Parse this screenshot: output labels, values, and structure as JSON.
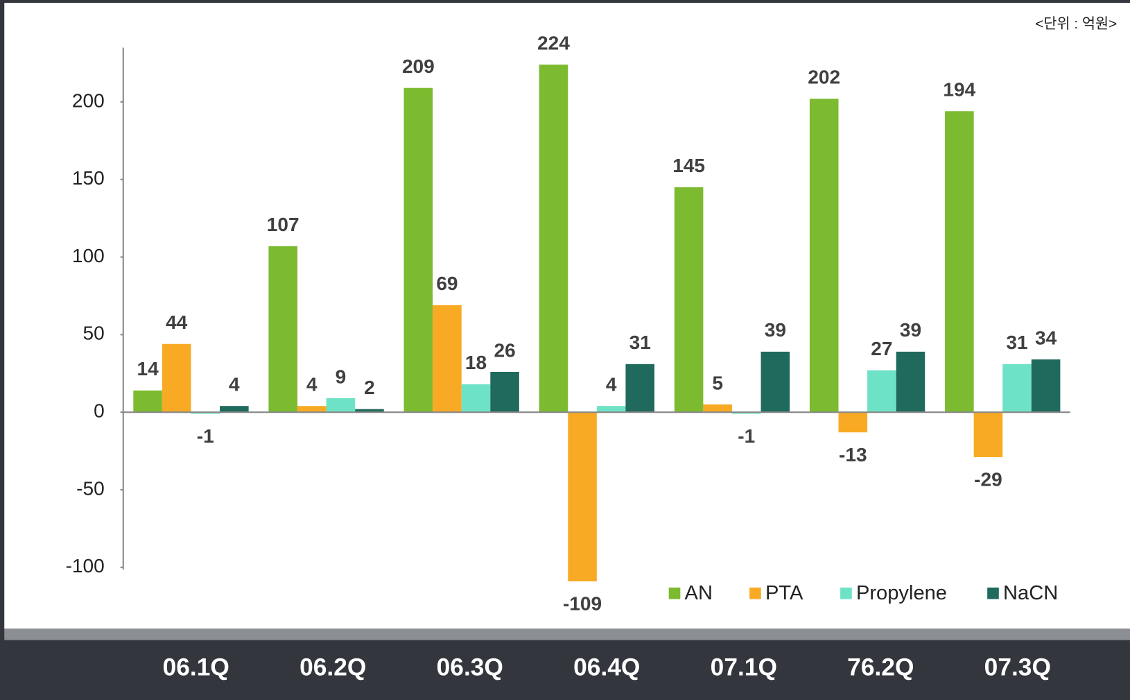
{
  "chart_data": {
    "type": "bar",
    "unit_note": "<단위 : 억원>",
    "categories": [
      "06.1Q",
      "06.2Q",
      "06.3Q",
      "06.4Q",
      "07.1Q",
      "76.2Q",
      "07.3Q"
    ],
    "series": [
      {
        "name": "AN",
        "color": "#7cba2f",
        "values": [
          14,
          107,
          209,
          224,
          145,
          202,
          194
        ]
      },
      {
        "name": "PTA",
        "color": "#f8aa24",
        "values": [
          44,
          4,
          69,
          -109,
          5,
          -13,
          -29
        ]
      },
      {
        "name": "Propylene",
        "color": "#6ee2c6",
        "values": [
          -1,
          9,
          18,
          4,
          -1,
          27,
          31
        ]
      },
      {
        "name": "NaCN",
        "color": "#1f6a5c",
        "values": [
          4,
          2,
          26,
          31,
          39,
          39,
          34
        ]
      }
    ],
    "ylim": [
      -100,
      235
    ],
    "yticks": [
      200,
      150,
      100,
      50,
      0,
      -50,
      -100
    ],
    "legend": "bottom-right"
  }
}
